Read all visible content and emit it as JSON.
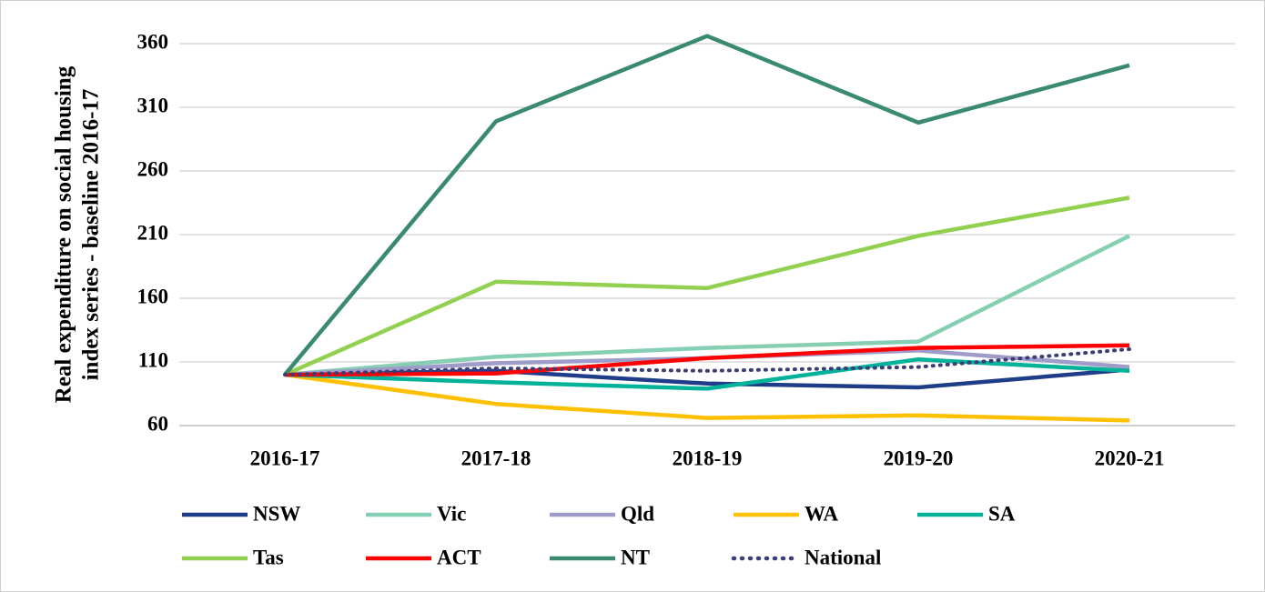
{
  "chart_data": {
    "type": "line",
    "y_label": [
      "Real expenditure on social housing",
      "index series - baseline 2016-17"
    ],
    "categories": [
      "2016-17",
      "2017-18",
      "2018-19",
      "2019-20",
      "2020-21"
    ],
    "ylim": [
      60,
      370
    ],
    "yticks": [
      60,
      110,
      160,
      210,
      260,
      310,
      360
    ],
    "grid": true,
    "series": [
      {
        "name": "NSW",
        "color": "#1f3c88",
        "values": [
          100,
          103,
          93,
          90,
          104
        ]
      },
      {
        "name": "Vic",
        "color": "#86cfb3",
        "values": [
          100,
          114,
          121,
          126,
          209
        ]
      },
      {
        "name": "Qld",
        "color": "#a09cc9",
        "values": [
          100,
          109,
          113,
          119,
          106
        ]
      },
      {
        "name": "WA",
        "color": "#ffc000",
        "values": [
          100,
          77,
          66,
          68,
          64
        ]
      },
      {
        "name": "SA",
        "color": "#00b29a",
        "values": [
          100,
          94,
          89,
          112,
          103
        ]
      },
      {
        "name": "Tas",
        "color": "#92d050",
        "values": [
          100,
          173,
          168,
          209,
          239
        ]
      },
      {
        "name": "ACT",
        "color": "#ff0000",
        "values": [
          100,
          101,
          113,
          121,
          123
        ]
      },
      {
        "name": "NT",
        "color": "#3a8a6e",
        "values": [
          100,
          299,
          366,
          298,
          343
        ]
      },
      {
        "name": "National",
        "color": "#3c3c78",
        "style": "dotted",
        "values": [
          100,
          105,
          103,
          106,
          120
        ]
      }
    ]
  }
}
